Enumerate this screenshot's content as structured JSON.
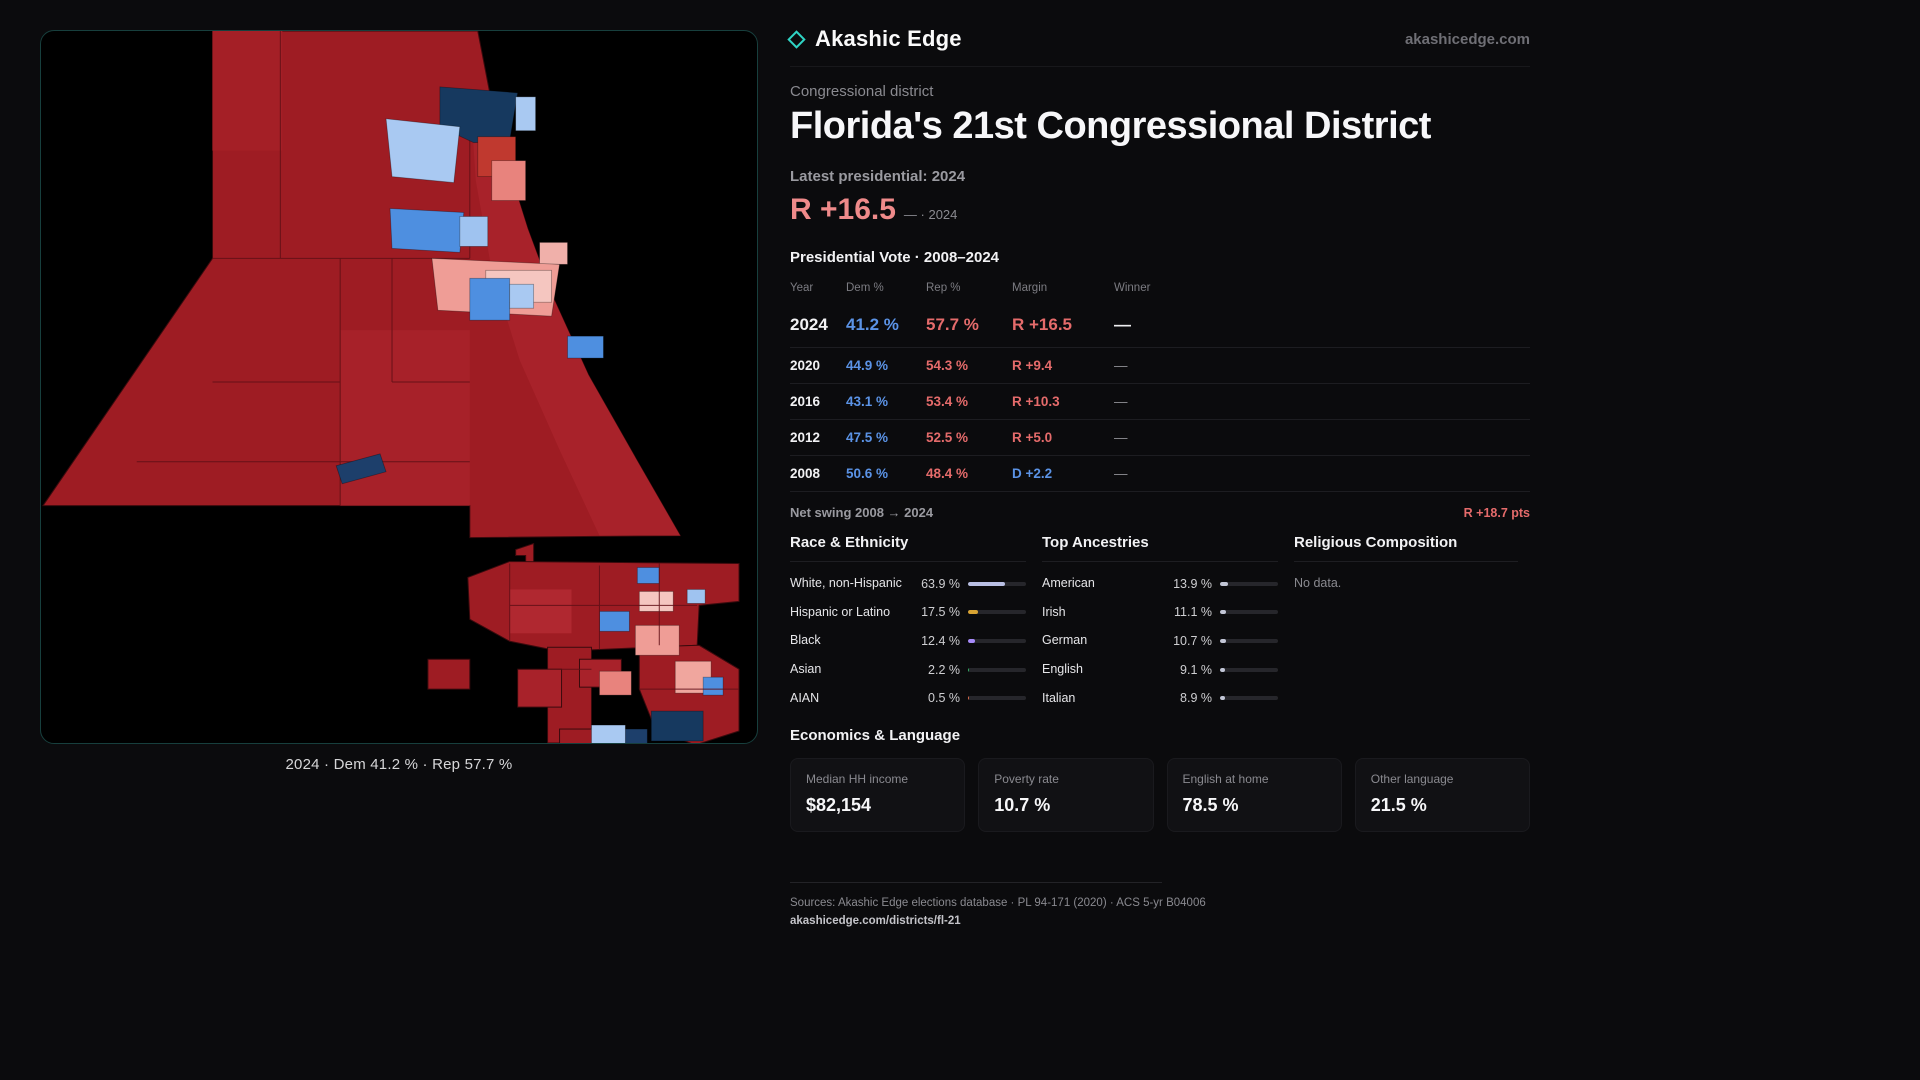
{
  "brand": {
    "name": "Akashic Edge",
    "domain": "akashicedge.com"
  },
  "header": {
    "kicker": "Congressional district",
    "title": "Florida's 21st Congressional District",
    "latest_label": "Latest presidential: 2024",
    "headline_margin": "R +16.5",
    "headline_note": "— · 2024"
  },
  "map": {
    "caption": "2024 · Dem 41.2 % · Rep 57.7 %"
  },
  "colors": {
    "accent": "#2fd4c4",
    "dem": "#5b93e6",
    "rep": "#e56b6b"
  },
  "vote_table": {
    "title": "Presidential Vote · 2008–2024",
    "columns": {
      "year": "Year",
      "dem": "Dem %",
      "rep": "Rep %",
      "margin": "Margin",
      "winner": "Winner"
    },
    "rows": [
      {
        "year": "2024",
        "dem": "41.2 %",
        "rep": "57.7 %",
        "margin": "R +16.5",
        "margin_color": "#e56b6b",
        "winner": "—"
      },
      {
        "year": "2020",
        "dem": "44.9 %",
        "rep": "54.3 %",
        "margin": "R +9.4",
        "margin_color": "#e56b6b",
        "winner": "—"
      },
      {
        "year": "2016",
        "dem": "43.1 %",
        "rep": "53.4 %",
        "margin": "R +10.3",
        "margin_color": "#e56b6b",
        "winner": "—"
      },
      {
        "year": "2012",
        "dem": "47.5 %",
        "rep": "52.5 %",
        "margin": "R +5.0",
        "margin_color": "#e56b6b",
        "winner": "—"
      },
      {
        "year": "2008",
        "dem": "50.6 %",
        "rep": "48.4 %",
        "margin": "D +2.2",
        "margin_color": "#5b93e6",
        "winner": "—"
      }
    ],
    "net_swing_label": "Net swing 2008 → 2024",
    "net_swing_value": "R +18.7 pts"
  },
  "race": {
    "title": "Race & Ethnicity",
    "rows": [
      {
        "label": "White, non-Hispanic",
        "value": "63.9 %",
        "pct": 63.9,
        "color": "#b9bfe3"
      },
      {
        "label": "Hispanic or Latino",
        "value": "17.5 %",
        "pct": 17.5,
        "color": "#d9a433"
      },
      {
        "label": "Black",
        "value": "12.4 %",
        "pct": 12.4,
        "color": "#a78bfa"
      },
      {
        "label": "Asian",
        "value": "2.2 %",
        "pct": 2.2,
        "color": "#2fae63"
      },
      {
        "label": "AIAN",
        "value": "0.5 %",
        "pct": 0.5,
        "color": "#d96a4a"
      }
    ]
  },
  "ancestries": {
    "title": "Top Ancestries",
    "rows": [
      {
        "label": "American",
        "value": "13.9 %",
        "pct": 13.9,
        "color": "#c2c6d6"
      },
      {
        "label": "Irish",
        "value": "11.1 %",
        "pct": 11.1,
        "color": "#c2c6d6"
      },
      {
        "label": "German",
        "value": "10.7 %",
        "pct": 10.7,
        "color": "#c2c6d6"
      },
      {
        "label": "English",
        "value": "9.1 %",
        "pct": 9.1,
        "color": "#c2c6d6"
      },
      {
        "label": "Italian",
        "value": "8.9 %",
        "pct": 8.9,
        "color": "#c2c6d6"
      }
    ]
  },
  "religion": {
    "title": "Religious Composition",
    "empty": "No data."
  },
  "economics": {
    "title": "Economics & Language",
    "stats": [
      {
        "label": "Median HH income",
        "value": "$82,154"
      },
      {
        "label": "Poverty rate",
        "value": "10.7 %"
      },
      {
        "label": "English at home",
        "value": "78.5 %"
      },
      {
        "label": "Other language",
        "value": "21.5 %"
      }
    ]
  },
  "footer": {
    "sources": "Sources: Akashic Edge elections database · PL 94-171 (2020) · ACS 5-yr B04006",
    "permalink": "akashicedge.com/districts/fl-21"
  }
}
